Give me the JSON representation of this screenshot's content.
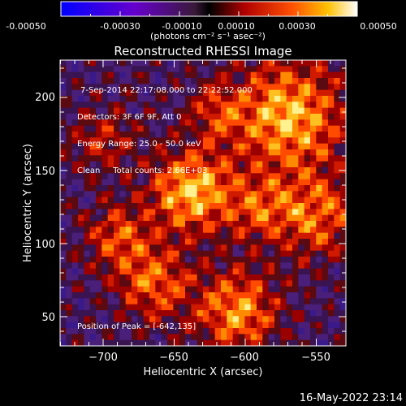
{
  "colorbar": {
    "tick_labels": [
      "-0.00050",
      "-0.00030",
      "-0.00010",
      "0.00010",
      "0.00030",
      "0.00050"
    ],
    "range": [
      -0.0005,
      0.0005
    ],
    "units_label": "(photons cm⁻² s⁻¹ asec⁻²)"
  },
  "image": {
    "title": "Reconstructed RHESSI Image",
    "info_lines": [
      "7-Sep-2014 22:17:08.000 to 22:22:52.000",
      "Detectors: 3F 6F 9F, Att 0",
      "Energy Range: 25.0 - 50.0 keV",
      "Clean     Total counts: 2.66E+03"
    ],
    "peak_label": "Position of Peak = [-642,135]",
    "xlabel": "Heliocentric X (arcsec)",
    "ylabel": "Heliocentric Y (arcsec)",
    "x_ticks": [
      "−700",
      "−650",
      "−600",
      "−550"
    ],
    "y_ticks": [
      "50",
      "100",
      "150",
      "200"
    ],
    "xlim": [
      -727,
      -535
    ],
    "ylim": [
      30,
      224
    ]
  },
  "footer": {
    "timestamp": "16-May-2022 23:14"
  },
  "colors": {
    "background": "#000000",
    "axis": "#ffffff"
  }
}
